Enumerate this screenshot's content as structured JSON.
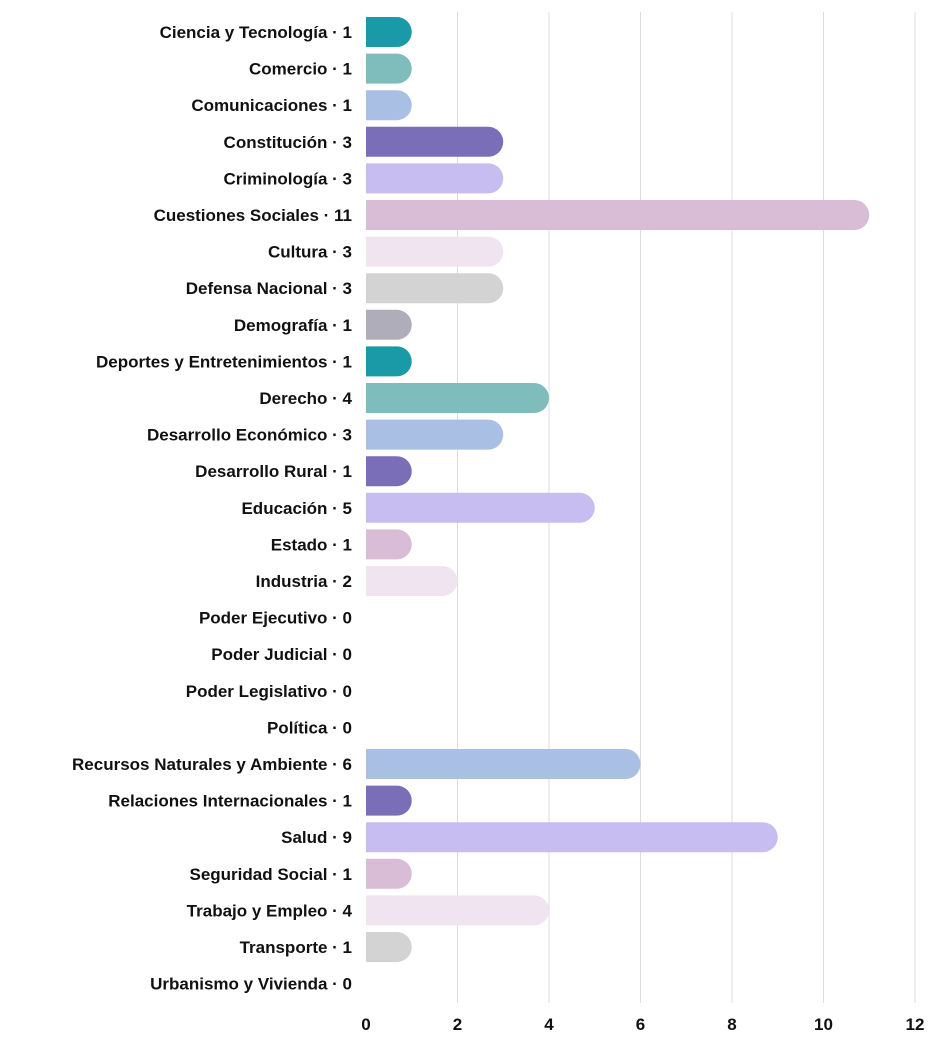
{
  "chart_data": {
    "type": "bar",
    "orientation": "horizontal",
    "categories": [
      "Ciencia y Tecnología · 1",
      "Comercio · 1",
      "Comunicaciones · 1",
      "Constitución · 3",
      "Criminología · 3",
      "Cuestiones Sociales · 11",
      "Cultura · 3",
      "Defensa Nacional · 3",
      "Demografía · 1",
      "Deportes y Entretenimientos · 1",
      "Derecho · 4",
      "Desarrollo Económico · 3",
      "Desarrollo Rural · 1",
      "Educación · 5",
      "Estado · 1",
      "Industria · 2",
      "Poder Ejecutivo · 0",
      "Poder Judicial · 0",
      "Poder Legislativo · 0",
      "Política · 0",
      "Recursos Naturales y Ambiente · 6",
      "Relaciones Internacionales · 1",
      "Salud · 9",
      "Seguridad Social · 1",
      "Trabajo y Empleo · 4",
      "Transporte · 1",
      "Urbanismo y Vivienda · 0"
    ],
    "values": [
      1,
      1,
      1,
      3,
      3,
      11,
      3,
      3,
      1,
      1,
      4,
      3,
      1,
      5,
      1,
      2,
      0,
      0,
      0,
      0,
      6,
      1,
      9,
      1,
      4,
      1,
      0
    ],
    "colors": [
      "#1a9aa6",
      "#7fbcbc",
      "#a9bfe3",
      "#7b6eb8",
      "#c7bdf0",
      "#d9bcd6",
      "#f0e4f0",
      "#d3d3d3",
      "#b0adbb",
      "#1a9aa6",
      "#7fbcbc",
      "#a9bfe3",
      "#7b6eb8",
      "#c7bdf0",
      "#d9bcd6",
      "#f0e4f0",
      "#d3d3d3",
      "#b0adbb",
      "#1a9aa6",
      "#7fbcbc",
      "#a9bfe3",
      "#7b6eb8",
      "#c7bdf0",
      "#d9bcd6",
      "#f0e4f0",
      "#d3d3d3",
      "#b0adbb"
    ],
    "x_ticks": [
      "0",
      "2",
      "4",
      "6",
      "8",
      "10",
      "12"
    ],
    "xlim": [
      0,
      12
    ],
    "grid": true,
    "legend": "none"
  }
}
